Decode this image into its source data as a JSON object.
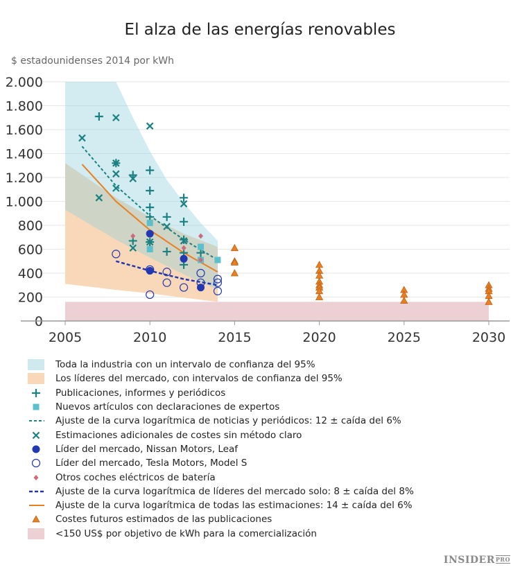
{
  "chart_data": {
    "type": "scatter",
    "title": "El alza de las energías renovables",
    "ylabel": "$ estadounidenses 2014 por kWh",
    "xlim": [
      2003,
      2031
    ],
    "ylim": [
      0,
      2000
    ],
    "xticks": [
      2005,
      2010,
      2015,
      2020,
      2025,
      2030
    ],
    "yticks": [
      0,
      200,
      400,
      600,
      800,
      1000,
      1200,
      1400,
      1600,
      1800,
      2000
    ],
    "ytick_labels": [
      "0",
      "200",
      "400",
      "600",
      "800",
      "1.000",
      "1.200",
      "1.400",
      "1.600",
      "1.800",
      "2.000"
    ],
    "grid": "horizontal",
    "legend_placement": "bottom",
    "colors": {
      "teal": "#1a8080",
      "teal_band": "#cfeaee",
      "orange_band": "#f8d8b8",
      "square": "#5bbfcc",
      "navy": "#2338b0",
      "diamond": "#cf6a7a",
      "orange": "#e88020",
      "pink": "#ecd0d4"
    },
    "bands": {
      "industry": {
        "upper": [
          [
            2005,
            2000
          ],
          [
            2008,
            2000
          ],
          [
            2009,
            1700
          ],
          [
            2010,
            1420
          ],
          [
            2011,
            1180
          ],
          [
            2012,
            990
          ],
          [
            2013,
            820
          ],
          [
            2014,
            670
          ]
        ],
        "lower": [
          [
            2005,
            930
          ],
          [
            2008,
            680
          ],
          [
            2010,
            530
          ],
          [
            2012,
            390
          ],
          [
            2014,
            260
          ]
        ]
      },
      "leaders": {
        "upper": [
          [
            2005,
            1320
          ],
          [
            2008,
            1030
          ],
          [
            2010,
            870
          ],
          [
            2012,
            730
          ],
          [
            2014,
            620
          ]
        ],
        "lower": [
          [
            2005,
            310
          ],
          [
            2008,
            260
          ],
          [
            2010,
            230
          ],
          [
            2012,
            195
          ],
          [
            2014,
            160
          ]
        ]
      },
      "target": {
        "x": [
          2005,
          2030
        ],
        "y": [
          0,
          160
        ]
      }
    },
    "curves": {
      "news": [
        [
          2006,
          1460
        ],
        [
          2008,
          1130
        ],
        [
          2010,
          880
        ],
        [
          2012,
          680
        ],
        [
          2014,
          510
        ]
      ],
      "all": [
        [
          2006,
          1310
        ],
        [
          2008,
          1000
        ],
        [
          2010,
          760
        ],
        [
          2012,
          570
        ],
        [
          2014,
          410
        ]
      ],
      "leaders": [
        [
          2008,
          500
        ],
        [
          2010,
          420
        ],
        [
          2012,
          350
        ],
        [
          2014,
          300
        ]
      ]
    },
    "series": {
      "plus": [
        [
          2007,
          1710
        ],
        [
          2009,
          1220
        ],
        [
          2009,
          670
        ],
        [
          2010,
          1260
        ],
        [
          2010,
          1090
        ],
        [
          2010,
          950
        ],
        [
          2010,
          870
        ],
        [
          2010,
          660
        ],
        [
          2011,
          870
        ],
        [
          2011,
          580
        ],
        [
          2012,
          1030
        ],
        [
          2012,
          830
        ],
        [
          2012,
          680
        ],
        [
          2012,
          570
        ],
        [
          2012,
          470
        ],
        [
          2013,
          570
        ],
        [
          2008,
          1320
        ]
      ],
      "x": [
        [
          2006,
          1530
        ],
        [
          2008,
          1700
        ],
        [
          2010,
          1630
        ],
        [
          2008,
          1320
        ],
        [
          2008,
          1230
        ],
        [
          2008,
          1110
        ],
        [
          2007,
          1030
        ],
        [
          2009,
          1190
        ],
        [
          2009,
          610
        ],
        [
          2011,
          790
        ],
        [
          2012,
          980
        ],
        [
          2012,
          670
        ],
        [
          2010,
          660
        ]
      ],
      "square": [
        [
          2010,
          820
        ],
        [
          2010,
          600
        ],
        [
          2013,
          620
        ],
        [
          2013,
          510
        ],
        [
          2014,
          510
        ]
      ],
      "filled_circle": [
        [
          2010,
          730
        ],
        [
          2010,
          420
        ],
        [
          2012,
          520
        ],
        [
          2013,
          280
        ]
      ],
      "open_circle": [
        [
          2008,
          560
        ],
        [
          2010,
          430
        ],
        [
          2010,
          220
        ],
        [
          2011,
          410
        ],
        [
          2011,
          320
        ],
        [
          2012,
          280
        ],
        [
          2013,
          400
        ],
        [
          2013,
          320
        ],
        [
          2014,
          350
        ],
        [
          2014,
          320
        ],
        [
          2014,
          250
        ]
      ],
      "diamond": [
        [
          2009,
          710
        ],
        [
          2012,
          610
        ],
        [
          2013,
          710
        ],
        [
          2013,
          510
        ]
      ],
      "triangle": [
        [
          2015,
          610
        ],
        [
          2015,
          500
        ],
        [
          2015,
          490
        ],
        [
          2015,
          400
        ],
        [
          2020,
          470
        ],
        [
          2020,
          420
        ],
        [
          2020,
          380
        ],
        [
          2020,
          330
        ],
        [
          2020,
          300
        ],
        [
          2020,
          280
        ],
        [
          2020,
          250
        ],
        [
          2020,
          200
        ],
        [
          2025,
          260
        ],
        [
          2025,
          220
        ],
        [
          2025,
          170
        ],
        [
          2030,
          300
        ],
        [
          2030,
          270
        ],
        [
          2030,
          250
        ],
        [
          2030,
          210
        ],
        [
          2030,
          160
        ]
      ]
    },
    "legend": [
      {
        "sym": "teal_band",
        "label": "Toda la industria con un intervalo de confianza del 95%"
      },
      {
        "sym": "orange_band",
        "label": "Los líderes del mercado, con intervalos de confianza del 95%"
      },
      {
        "sym": "plus",
        "label": "Publicaciones, informes y periódicos"
      },
      {
        "sym": "square",
        "label": "Nuevos artículos con declaraciones de expertos"
      },
      {
        "sym": "teal_dash",
        "label": "Ajuste de la curva logarítmica de noticias y periódicos: 12 ±  caída del 6%"
      },
      {
        "sym": "x",
        "label": "Estimaciones adicionales de costes sin método claro"
      },
      {
        "sym": "filled_circle",
        "label": "Líder del mercado, Nissan Motors, Leaf"
      },
      {
        "sym": "open_circle",
        "label": "Líder del mercado, Tesla Motors, Model S"
      },
      {
        "sym": "diamond",
        "label": "Otros coches eléctricos de batería"
      },
      {
        "sym": "navy_dash",
        "label": "Ajuste de la curva logarítmica de líderes del mercado solo: 8 ± caída del 8%"
      },
      {
        "sym": "orange_line",
        "label": "Ajuste de la curva logarítmica de todas las estimaciones: 14 ± caída del 6%"
      },
      {
        "sym": "triangle",
        "label": "Costes futuros estimados de las publicaciones"
      },
      {
        "sym": "pink_band",
        "label": "<150 US$ por objetivo de kWh para la comercialización"
      }
    ]
  },
  "logo": {
    "main": "INSIDER",
    "sub": "PRO"
  }
}
